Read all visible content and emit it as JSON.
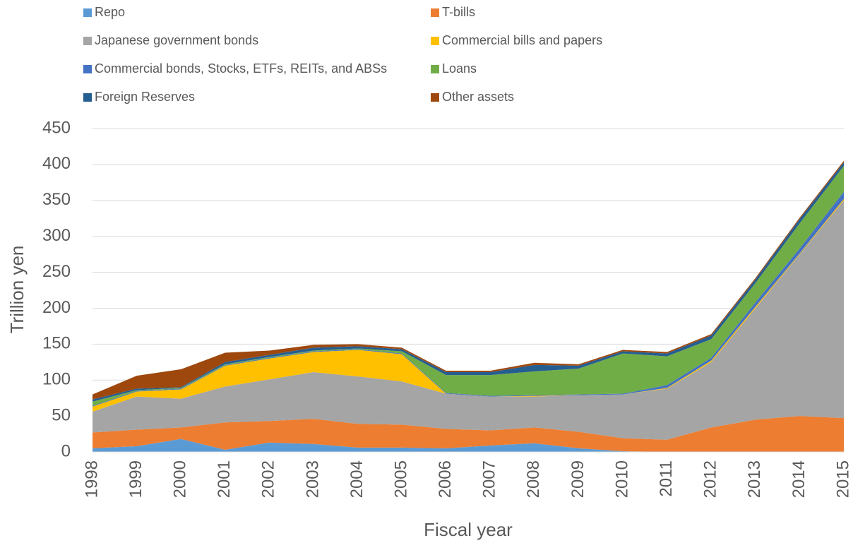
{
  "chart_data": {
    "type": "stacked-area",
    "y_label": "Trillion yen",
    "x_label": "Fiscal year",
    "categories": [
      "1998",
      "1999",
      "2000",
      "2001",
      "2002",
      "2003",
      "2004",
      "2005",
      "2006",
      "2007",
      "2008",
      "2009",
      "2010",
      "2011",
      "2012",
      "2013",
      "2014",
      "2015"
    ],
    "ylim": [
      0,
      450
    ],
    "yticks": [
      0,
      50,
      100,
      150,
      200,
      250,
      300,
      350,
      400,
      450
    ],
    "grid": true,
    "series": [
      {
        "name": "Repo",
        "color": "#5b9bd5",
        "values": [
          5,
          8,
          18,
          3,
          13,
          11,
          6,
          6,
          5,
          9,
          12,
          5,
          1,
          0,
          0,
          0,
          0,
          0
        ]
      },
      {
        "name": "T-bills",
        "color": "#ed7d31",
        "values": [
          22,
          23,
          16,
          38,
          30,
          35,
          33,
          32,
          27,
          21,
          22,
          23,
          18,
          17,
          34,
          45,
          50,
          47
        ]
      },
      {
        "name": "Japanese government bonds",
        "color": "#a5a5a5",
        "values": [
          29,
          46,
          40,
          50,
          58,
          65,
          66,
          60,
          49,
          47,
          43,
          51,
          61,
          71,
          91,
          155,
          225,
          303
        ]
      },
      {
        "name": "Commercial bills and papers",
        "color": "#ffc000",
        "values": [
          7,
          7,
          13,
          29,
          29,
          28,
          37,
          38,
          0,
          0,
          1,
          0,
          0,
          1,
          2,
          2,
          1,
          2
        ]
      },
      {
        "name": "Commercial bonds, Stocks, ETFs, REITs, and ABSs",
        "color": "#4472c4",
        "values": [
          1,
          1,
          1,
          1,
          1,
          1,
          1,
          1,
          1,
          1,
          1,
          1,
          1,
          4,
          4,
          6,
          7,
          10
        ]
      },
      {
        "name": "Loans",
        "color": "#70ad47",
        "values": [
          6,
          1,
          1,
          1,
          1,
          1,
          1,
          3,
          25,
          29,
          33,
          36,
          56,
          40,
          26,
          27,
          35,
          36
        ]
      },
      {
        "name": "Foreign Reserves",
        "color": "#255e91",
        "values": [
          3,
          2,
          1,
          3,
          3,
          4,
          3,
          3,
          4,
          4,
          9,
          4,
          3,
          4,
          5,
          5,
          6,
          5
        ]
      },
      {
        "name": "Other assets",
        "color": "#9e480e",
        "values": [
          7,
          18,
          25,
          13,
          6,
          4,
          3,
          2,
          2,
          2,
          3,
          2,
          2,
          2,
          2,
          2,
          2,
          2
        ]
      }
    ]
  }
}
